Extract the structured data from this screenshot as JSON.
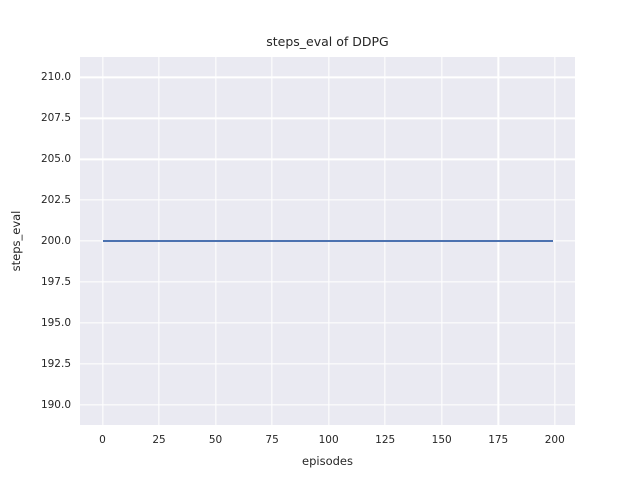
{
  "chart_data": {
    "type": "line",
    "title": "steps_eval of DDPG",
    "xlabel": "episodes",
    "ylabel": "steps_eval",
    "xlim": [
      -9.95,
      208.95
    ],
    "ylim": [
      188.75,
      211.25
    ],
    "x_ticks": [
      0,
      25,
      50,
      75,
      100,
      125,
      150,
      175,
      200
    ],
    "x_tick_labels": [
      "0",
      "25",
      "50",
      "75",
      "100",
      "125",
      "150",
      "175",
      "200"
    ],
    "y_ticks": [
      190.0,
      192.5,
      195.0,
      197.5,
      200.0,
      202.5,
      205.0,
      207.5,
      210.0
    ],
    "y_tick_labels": [
      "190.0",
      "192.5",
      "195.0",
      "197.5",
      "200.0",
      "202.5",
      "205.0",
      "207.5",
      "210.0"
    ],
    "grid": true,
    "legend": null,
    "series": [
      {
        "name": "steps_eval",
        "x": [
          0,
          199
        ],
        "y": [
          200.0,
          200.0
        ],
        "constant_value": 200.0,
        "color": "#4C72B0"
      }
    ],
    "colors": {
      "figure_background": "#FFFFFF",
      "axes_background": "#EAEAF2",
      "grid_color": "#FFFFFF",
      "text_color": "#262626",
      "line_color": "#4C72B0"
    }
  }
}
